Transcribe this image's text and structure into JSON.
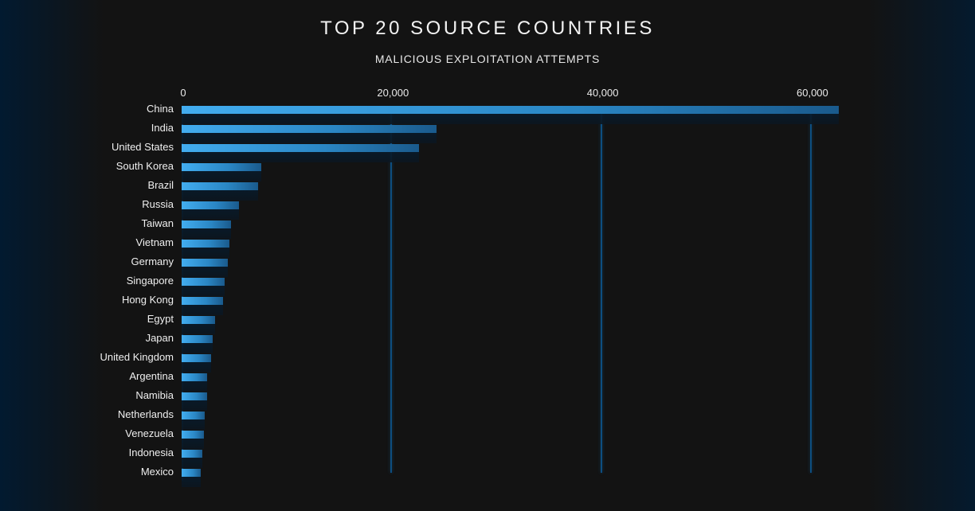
{
  "header": {
    "title": "TOP 20 SOURCE COUNTRIES",
    "subtitle": "MALICIOUS EXPLOITATION ATTEMPTS"
  },
  "axis": {
    "ticks": [
      "0",
      "20,000",
      "40,000",
      "60,000"
    ]
  },
  "colors": {
    "background": "#131313",
    "edge_glow": "#021a30",
    "bar_start": "#42adf0",
    "bar_end": "#1a5a8c",
    "gridline": "#0d4e80"
  },
  "chart_data": {
    "type": "bar",
    "orientation": "horizontal",
    "title": "TOP 20 SOURCE COUNTRIES",
    "subtitle": "MALICIOUS EXPLOITATION ATTEMPTS",
    "xlabel": "",
    "ylabel": "",
    "xlim": [
      0,
      65000
    ],
    "x_ticks": [
      0,
      20000,
      40000,
      60000
    ],
    "x_tick_labels": [
      "0",
      "20,000",
      "40,000",
      "60,000"
    ],
    "x_axis_position": "top",
    "grid": true,
    "legend": null,
    "categories": [
      "China",
      "India",
      "United States",
      "South Korea",
      "Brazil",
      "Russia",
      "Taiwan",
      "Vietnam",
      "Germany",
      "Singapore",
      "Hong Kong",
      "Egypt",
      "Japan",
      "United Kingdom",
      "Argentina",
      "Namibia",
      "Netherlands",
      "Venezuela",
      "Indonesia",
      "Mexico"
    ],
    "values": [
      62700,
      24300,
      22600,
      7600,
      7300,
      5500,
      4700,
      4550,
      4400,
      4100,
      3950,
      3200,
      2950,
      2800,
      2450,
      2400,
      2200,
      2100,
      1950,
      1800
    ]
  }
}
